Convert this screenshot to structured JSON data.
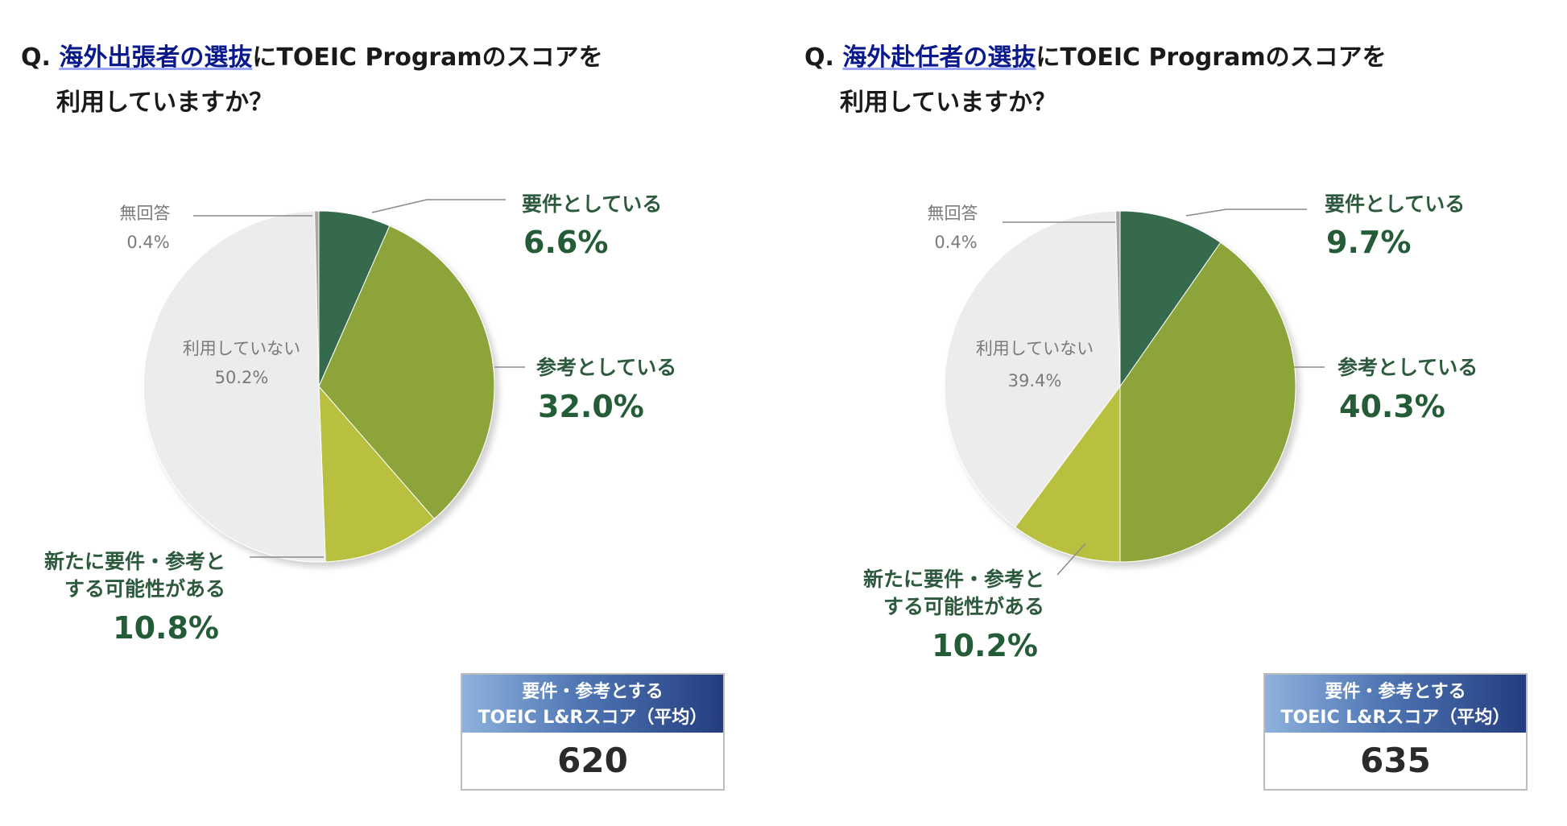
{
  "chart_data": [
    {
      "type": "pie",
      "title_prefix": "Q.",
      "title_highlight": "海外出張者の選抜",
      "title_rest": "にTOEIC Programのスコアを",
      "title_line2": "利用していますか？",
      "slices": [
        {
          "label": "要件としている",
          "value": 6.6,
          "display": "6.6%",
          "color": "#346b4d"
        },
        {
          "label": "参考としている",
          "value": 32.0,
          "display": "32.0%",
          "color": "#8da43a"
        },
        {
          "label": "新たに要件・参考とする可能性がある",
          "label_lines": [
            "新たに要件・参考と",
            "する可能性がある"
          ],
          "value": 10.8,
          "display": "10.8%",
          "color": "#b9c03f"
        },
        {
          "label": "利用していない",
          "value": 50.2,
          "display": "50.2%",
          "color": "#ececec"
        },
        {
          "label": "無回答",
          "value": 0.4,
          "display": "0.4%",
          "color": "#a8a8a8"
        }
      ],
      "score_box": {
        "line1": "要件・参考とする",
        "line2": "TOEIC L&Rスコア（平均）",
        "value": "620"
      }
    },
    {
      "type": "pie",
      "title_prefix": "Q.",
      "title_highlight": "海外赴任者の選抜",
      "title_rest": "にTOEIC Programのスコアを",
      "title_line2": "利用していますか？",
      "slices": [
        {
          "label": "要件としている",
          "value": 9.7,
          "display": "9.7%",
          "color": "#346b4d"
        },
        {
          "label": "参考としている",
          "value": 40.3,
          "display": "40.3%",
          "color": "#8da43a"
        },
        {
          "label": "新たに要件・参考とする可能性がある",
          "label_lines": [
            "新たに要件・参考と",
            "する可能性がある"
          ],
          "value": 10.2,
          "display": "10.2%",
          "color": "#b9c03f"
        },
        {
          "label": "利用していない",
          "value": 39.4,
          "display": "39.4%",
          "color": "#ececec"
        },
        {
          "label": "無回答",
          "value": 0.4,
          "display": "0.4%",
          "color": "#a8a8a8"
        }
      ],
      "score_box": {
        "line1": "要件・参考とする",
        "line2": "TOEIC L&Rスコア（平均）",
        "value": "635"
      }
    }
  ]
}
